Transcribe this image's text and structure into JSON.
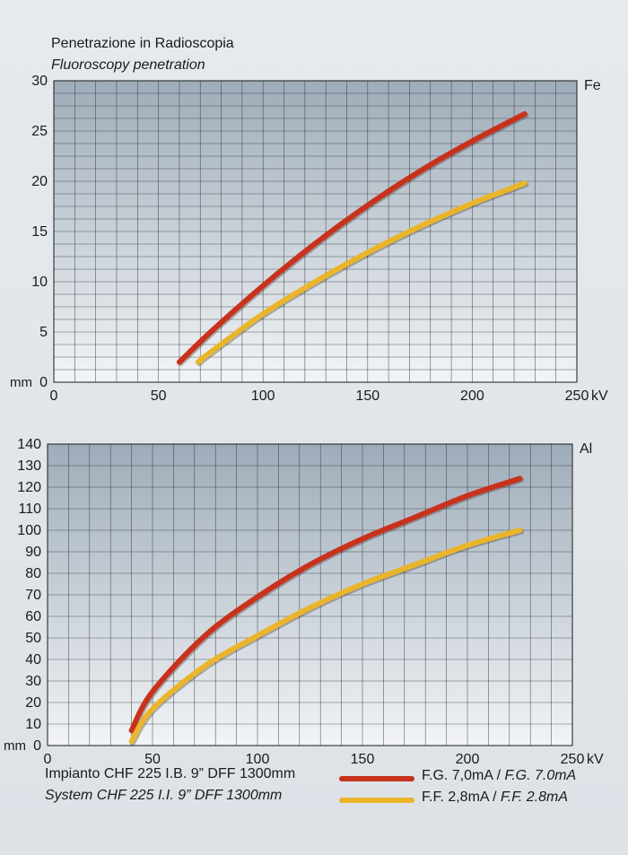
{
  "heading": {
    "line1": "Penetrazione in Radioscopia",
    "line2": "Fluoroscopy penetration"
  },
  "footer": {
    "line1": "Impianto CHF 225 I.B. 9” DFF 1300mm",
    "line2": "System CHF 225 I.I. 9” DFF 1300mm"
  },
  "legend": [
    {
      "label_it": "F.G. 7,0mA / ",
      "label_en": "F.G. 7.0mA",
      "color": "#c8321c"
    },
    {
      "label_it": "F.F. 2,8mA / ",
      "label_en": "F.F. 2.8mA",
      "color": "#eab52a"
    }
  ],
  "chart_data": [
    {
      "type": "line",
      "material_label": "Fe",
      "xunit": "kV",
      "yunit": "mm",
      "xlim": [
        0,
        250
      ],
      "ylim": [
        0,
        30
      ],
      "xticks": [
        0,
        50,
        100,
        150,
        200,
        250
      ],
      "yticks": [
        0,
        5,
        10,
        15,
        20,
        25,
        30
      ],
      "grid": true,
      "series": [
        {
          "name": "F.G. 7,0mA / F.G. 7.0mA",
          "color": "#c8321c",
          "x": [
            60,
            75,
            100,
            125,
            150,
            175,
            200,
            225
          ],
          "y": [
            2.0,
            5.0,
            9.6,
            13.8,
            17.6,
            21.0,
            24.0,
            26.7
          ]
        },
        {
          "name": "F.F. 2,8mA / F.F. 2.8mA",
          "color": "#eab52a",
          "x": [
            69,
            75,
            100,
            125,
            150,
            175,
            200,
            225
          ],
          "y": [
            2.0,
            3.0,
            6.8,
            10.0,
            12.9,
            15.5,
            17.8,
            19.8
          ]
        }
      ]
    },
    {
      "type": "line",
      "material_label": "Al",
      "xunit": "kV",
      "yunit": "mm",
      "xlim": [
        0,
        250
      ],
      "ylim": [
        0,
        140
      ],
      "xticks": [
        0,
        50,
        100,
        150,
        200,
        250
      ],
      "yticks": [
        0,
        10,
        20,
        30,
        40,
        50,
        60,
        70,
        80,
        90,
        100,
        110,
        120,
        130,
        140
      ],
      "grid": true,
      "series": [
        {
          "name": "F.G. 7,0mA / F.G. 7.0mA",
          "color": "#c8321c",
          "x": [
            40,
            50,
            75,
            100,
            125,
            150,
            175,
            200,
            225
          ],
          "y": [
            7,
            25,
            51,
            69,
            84,
            96,
            106,
            116,
            124
          ]
        },
        {
          "name": "F.F. 2,8mA / F.F. 2.8mA",
          "color": "#eab52a",
          "x": [
            40,
            50,
            75,
            100,
            125,
            150,
            175,
            200,
            225
          ],
          "y": [
            2,
            17,
            37,
            51,
            64,
            75,
            84,
            93,
            100
          ]
        }
      ]
    }
  ]
}
